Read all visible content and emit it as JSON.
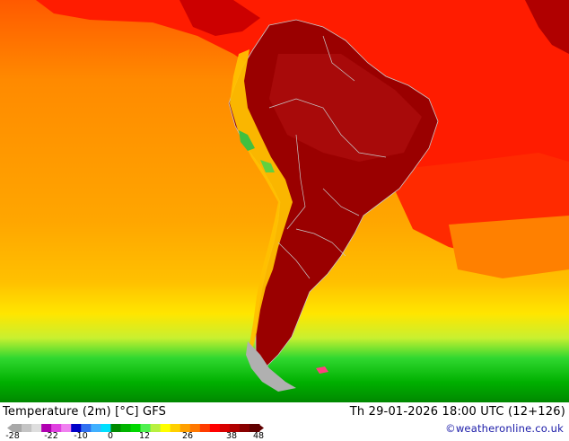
{
  "map": {
    "title": "Temperature (2m) [°C] GFS",
    "valid_time": "Th 29-01-2026 18:00 UTC (12+126)",
    "credit": "©weatheronline.co.uk",
    "region": "South America"
  },
  "legend": {
    "ticks": [
      "-28",
      "-22",
      "-10",
      "0",
      "12",
      "26",
      "38",
      "48"
    ],
    "colors": [
      "#a8a8a8",
      "#c4c4c4",
      "#dedede",
      "#b000b0",
      "#e040e0",
      "#f080f0",
      "#0000c8",
      "#3070f0",
      "#40b0ff",
      "#00e0ff",
      "#008a00",
      "#00b400",
      "#00d800",
      "#50f050",
      "#b8f040",
      "#ffff00",
      "#ffd000",
      "#ffa000",
      "#ff7800",
      "#ff3c00",
      "#ff0000",
      "#d80000",
      "#b00000",
      "#880000",
      "#600000"
    ]
  },
  "colors": {
    "ocean_cool": "#00a800",
    "ocean_warm": "#ff9d00",
    "land_hot": "#9a0000",
    "borders": "#c0c0c0"
  }
}
